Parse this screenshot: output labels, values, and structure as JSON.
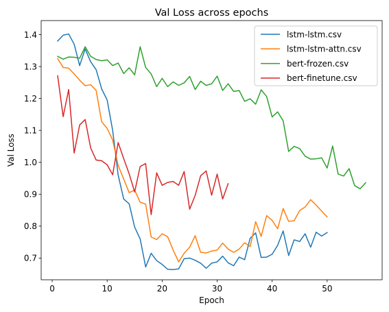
{
  "chart_data": {
    "type": "line",
    "title": "Val Loss across epochs",
    "xlabel": "Epoch",
    "ylabel": "Val Loss",
    "xlim": [
      -2,
      60
    ],
    "ylim": [
      0.632,
      1.444
    ],
    "xticks": [
      0,
      10,
      20,
      30,
      40,
      50
    ],
    "yticks": [
      0.7,
      0.8,
      0.9,
      1.0,
      1.1,
      1.2,
      1.3,
      1.4
    ],
    "ytick_labels": [
      "0.7",
      "0.8",
      "0.9",
      "1.0",
      "1.1",
      "1.2",
      "1.3",
      "1.4"
    ],
    "grid": false,
    "legend_position": "top-right",
    "series": [
      {
        "name": "lstm-lstm.csv",
        "color": "#1f77b4",
        "x": [
          1,
          2,
          3,
          4,
          5,
          6,
          7,
          8,
          9,
          10,
          11,
          12,
          13,
          14,
          15,
          16,
          17,
          18,
          19,
          20,
          21,
          22,
          23,
          24,
          25,
          26,
          27,
          28,
          29,
          30,
          31,
          32,
          33,
          34,
          35,
          36,
          37,
          38,
          39,
          40,
          41,
          42,
          43,
          44,
          45,
          46,
          47,
          48,
          49,
          50
        ],
        "y": [
          1.38,
          1.398,
          1.402,
          1.37,
          1.303,
          1.355,
          1.315,
          1.29,
          1.23,
          1.195,
          1.1,
          0.96,
          0.885,
          0.87,
          0.797,
          0.76,
          0.672,
          0.715,
          0.692,
          0.68,
          0.665,
          0.664,
          0.666,
          0.698,
          0.7,
          0.693,
          0.684,
          0.668,
          0.684,
          0.688,
          0.706,
          0.685,
          0.676,
          0.703,
          0.695,
          0.762,
          0.779,
          0.702,
          0.703,
          0.712,
          0.74,
          0.785,
          0.708,
          0.757,
          0.752,
          0.776,
          0.734,
          0.781,
          0.769,
          0.78
        ]
      },
      {
        "name": "lstm-lstm-attn.csv",
        "color": "#ff7f0e",
        "x": [
          1,
          2,
          3,
          4,
          5,
          6,
          7,
          8,
          9,
          10,
          11,
          12,
          13,
          14,
          15,
          16,
          17,
          18,
          19,
          20,
          21,
          22,
          23,
          24,
          25,
          26,
          27,
          28,
          29,
          30,
          31,
          32,
          33,
          34,
          35,
          36,
          37,
          38,
          39,
          40,
          41,
          42,
          43,
          44,
          45,
          46,
          47,
          48,
          49,
          50
        ],
        "y": [
          1.325,
          1.297,
          1.295,
          1.277,
          1.257,
          1.24,
          1.243,
          1.225,
          1.127,
          1.106,
          1.07,
          0.99,
          0.948,
          0.905,
          0.913,
          0.875,
          0.869,
          0.766,
          0.758,
          0.776,
          0.767,
          0.725,
          0.688,
          0.715,
          0.734,
          0.77,
          0.718,
          0.716,
          0.722,
          0.725,
          0.747,
          0.728,
          0.718,
          0.728,
          0.748,
          0.736,
          0.814,
          0.768,
          0.833,
          0.818,
          0.792,
          0.855,
          0.815,
          0.817,
          0.849,
          0.86,
          0.883,
          0.866,
          0.847,
          0.829
        ]
      },
      {
        "name": "bert-frozen.csv",
        "color": "#2ca02c",
        "x": [
          1,
          2,
          3,
          4,
          5,
          6,
          7,
          8,
          9,
          10,
          11,
          12,
          13,
          14,
          15,
          16,
          17,
          18,
          19,
          20,
          21,
          22,
          23,
          24,
          25,
          26,
          27,
          28,
          29,
          30,
          31,
          32,
          33,
          34,
          35,
          36,
          37,
          38,
          39,
          40,
          41,
          42,
          43,
          44,
          45,
          46,
          47,
          48,
          49,
          50,
          51,
          52,
          53,
          54,
          55,
          56,
          57
        ],
        "y": [
          1.332,
          1.323,
          1.33,
          1.329,
          1.326,
          1.362,
          1.332,
          1.322,
          1.318,
          1.321,
          1.303,
          1.311,
          1.278,
          1.296,
          1.274,
          1.362,
          1.297,
          1.277,
          1.237,
          1.263,
          1.237,
          1.252,
          1.241,
          1.249,
          1.269,
          1.228,
          1.254,
          1.241,
          1.246,
          1.27,
          1.225,
          1.246,
          1.222,
          1.225,
          1.191,
          1.199,
          1.182,
          1.227,
          1.206,
          1.142,
          1.158,
          1.13,
          1.034,
          1.05,
          1.043,
          1.019,
          1.01,
          1.011,
          1.014,
          0.982,
          1.051,
          0.963,
          0.957,
          0.98,
          0.927,
          0.917,
          0.936
        ]
      },
      {
        "name": "bert-finetune.csv",
        "color": "#d62728",
        "x": [
          1,
          2,
          3,
          4,
          5,
          6,
          7,
          8,
          9,
          10,
          11,
          12,
          13,
          14,
          15,
          16,
          17,
          18,
          19,
          20,
          21,
          22,
          23,
          24,
          25,
          26,
          27,
          28,
          29,
          30,
          31,
          32
        ],
        "y": [
          1.271,
          1.143,
          1.228,
          1.029,
          1.117,
          1.134,
          1.045,
          1.007,
          1.005,
          0.992,
          0.961,
          1.062,
          1.012,
          0.964,
          0.907,
          0.987,
          0.996,
          0.836,
          0.967,
          0.928,
          0.937,
          0.94,
          0.928,
          0.971,
          0.853,
          0.896,
          0.958,
          0.973,
          0.897,
          0.963,
          0.885,
          0.933
        ]
      }
    ]
  }
}
